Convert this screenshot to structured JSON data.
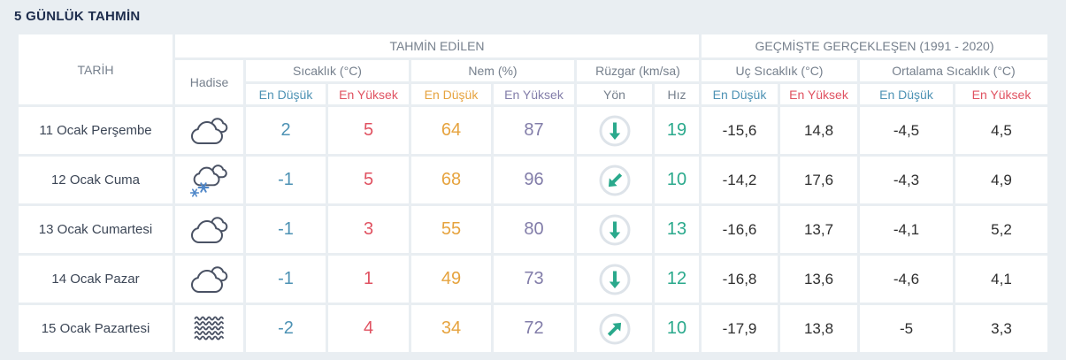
{
  "title": "5 GÜNLÜK TAHMİN",
  "header": {
    "date": "TARİH",
    "forecast_group": "TAHMİN EDİLEN",
    "history_group": "GEÇMİŞTE GERÇEKLEŞEN (1991 - 2020)",
    "condition": "Hadise",
    "temperature_group": "Sıcaklık (°C)",
    "humidity_group": "Nem (%)",
    "wind_group": "Rüzgar (km/sa)",
    "extreme_temp_group": "Uç Sıcaklık (°C)",
    "average_temp_group": "Ortalama Sıcaklık (°C)",
    "min": "En Düşük",
    "max": "En Yüksek",
    "wind_direction": "Yön",
    "wind_speed": "Hız"
  },
  "rows": [
    {
      "date": "11 Ocak Perşembe",
      "condition_icon": "cloudy-icon",
      "temp_min": "2",
      "temp_max": "5",
      "humidity_min": "64",
      "humidity_max": "87",
      "wind_direction": "down",
      "wind_speed": "19",
      "extreme_min": "-15,6",
      "extreme_max": "14,8",
      "average_min": "-4,5",
      "average_max": "4,5"
    },
    {
      "date": "12 Ocak Cuma",
      "condition_icon": "snow-icon",
      "temp_min": "-1",
      "temp_max": "5",
      "humidity_min": "68",
      "humidity_max": "96",
      "wind_direction": "down-left",
      "wind_speed": "10",
      "extreme_min": "-14,2",
      "extreme_max": "17,6",
      "average_min": "-4,3",
      "average_max": "4,9"
    },
    {
      "date": "13 Ocak Cumartesi",
      "condition_icon": "cloudy-icon",
      "temp_min": "-1",
      "temp_max": "3",
      "humidity_min": "55",
      "humidity_max": "80",
      "wind_direction": "down",
      "wind_speed": "13",
      "extreme_min": "-16,6",
      "extreme_max": "13,7",
      "average_min": "-4,1",
      "average_max": "5,2"
    },
    {
      "date": "14 Ocak Pazar",
      "condition_icon": "cloudy-icon",
      "temp_min": "-1",
      "temp_max": "1",
      "humidity_min": "49",
      "humidity_max": "73",
      "wind_direction": "down",
      "wind_speed": "12",
      "extreme_min": "-16,8",
      "extreme_max": "13,6",
      "average_min": "-4,6",
      "average_max": "4,1"
    },
    {
      "date": "15 Ocak Pazartesi",
      "condition_icon": "fog-icon",
      "temp_min": "-2",
      "temp_max": "4",
      "humidity_min": "34",
      "humidity_max": "72",
      "wind_direction": "up-right",
      "wind_speed": "10",
      "extreme_min": "-17,9",
      "extreme_max": "13,8",
      "average_min": "-5",
      "average_max": "3,3"
    }
  ],
  "colors": {
    "min_temp": "#4d92b4",
    "max_temp": "#e05261",
    "min_humidity": "#e6a33e",
    "max_humidity": "#827da9",
    "wind": "#2aa98c",
    "icon_stroke": "#4a5264",
    "snowflake": "#4e86c8",
    "wind_circle": "#dde3e9"
  }
}
